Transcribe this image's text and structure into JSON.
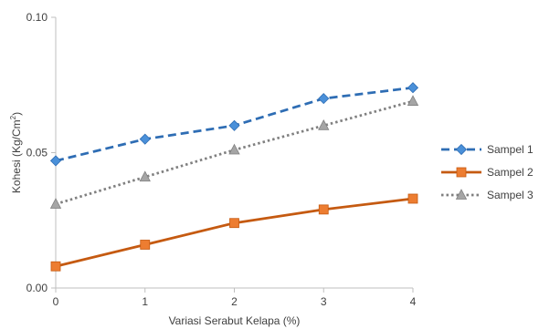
{
  "chart_data": {
    "type": "line",
    "title": "",
    "xlabel": "Variasi Serabut Kelapa (%)",
    "ylabel_main": "Kohesi (Kg/Cm",
    "ylabel_sup": "2",
    "ylabel_close": ")",
    "x": [
      0,
      1,
      2,
      3,
      4
    ],
    "x_tick_labels": [
      "0",
      "1",
      "2",
      "3",
      "4"
    ],
    "ylim": [
      0,
      0.1
    ],
    "y_ticks": [
      0,
      0.05,
      0.1
    ],
    "y_tick_labels": [
      "0.00",
      "0.05",
      "0.10"
    ],
    "grid": false,
    "legend_position": "right",
    "series": [
      {
        "name": "Sampel 1",
        "values": [
          0.047,
          0.055,
          0.06,
          0.07,
          0.074
        ],
        "color": "#2e6db4",
        "dash": "dashed",
        "marker": "diamond",
        "marker_color": "#4a90d9"
      },
      {
        "name": "Sampel 2",
        "values": [
          0.008,
          0.016,
          0.024,
          0.029,
          0.033
        ],
        "color": "#c55a11",
        "dash": "solid",
        "marker": "square",
        "marker_color": "#ed7d31"
      },
      {
        "name": "Sampel 3",
        "values": [
          0.031,
          0.041,
          0.051,
          0.06,
          0.069
        ],
        "color": "#808080",
        "dash": "dotted",
        "marker": "triangle",
        "marker_color": "#a5a5a5"
      }
    ]
  }
}
